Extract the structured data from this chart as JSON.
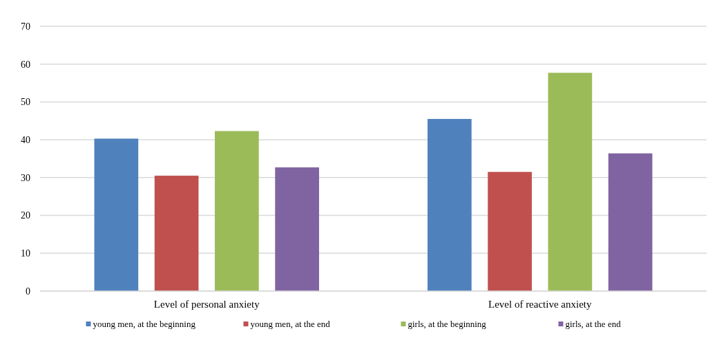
{
  "chart_data": {
    "type": "bar",
    "categories": [
      "Level of personal anxiety",
      "Level of reactive anxiety"
    ],
    "series": [
      {
        "name": "young men, at the beginning",
        "color": "#4f81bd",
        "values": [
          40.3,
          45.5
        ]
      },
      {
        "name": "young men, at the end",
        "color": "#c0504d",
        "values": [
          30.5,
          31.5
        ]
      },
      {
        "name": "girls, at the beginning",
        "color": "#9bbb59",
        "values": [
          42.3,
          57.7
        ]
      },
      {
        "name": "girls, at the end",
        "color": "#8064a2",
        "values": [
          32.7,
          36.4
        ]
      }
    ],
    "ylim": [
      0,
      70
    ],
    "yticks": [
      0,
      10,
      20,
      30,
      40,
      50,
      60,
      70
    ],
    "grid": "y",
    "legend": "bottom"
  }
}
